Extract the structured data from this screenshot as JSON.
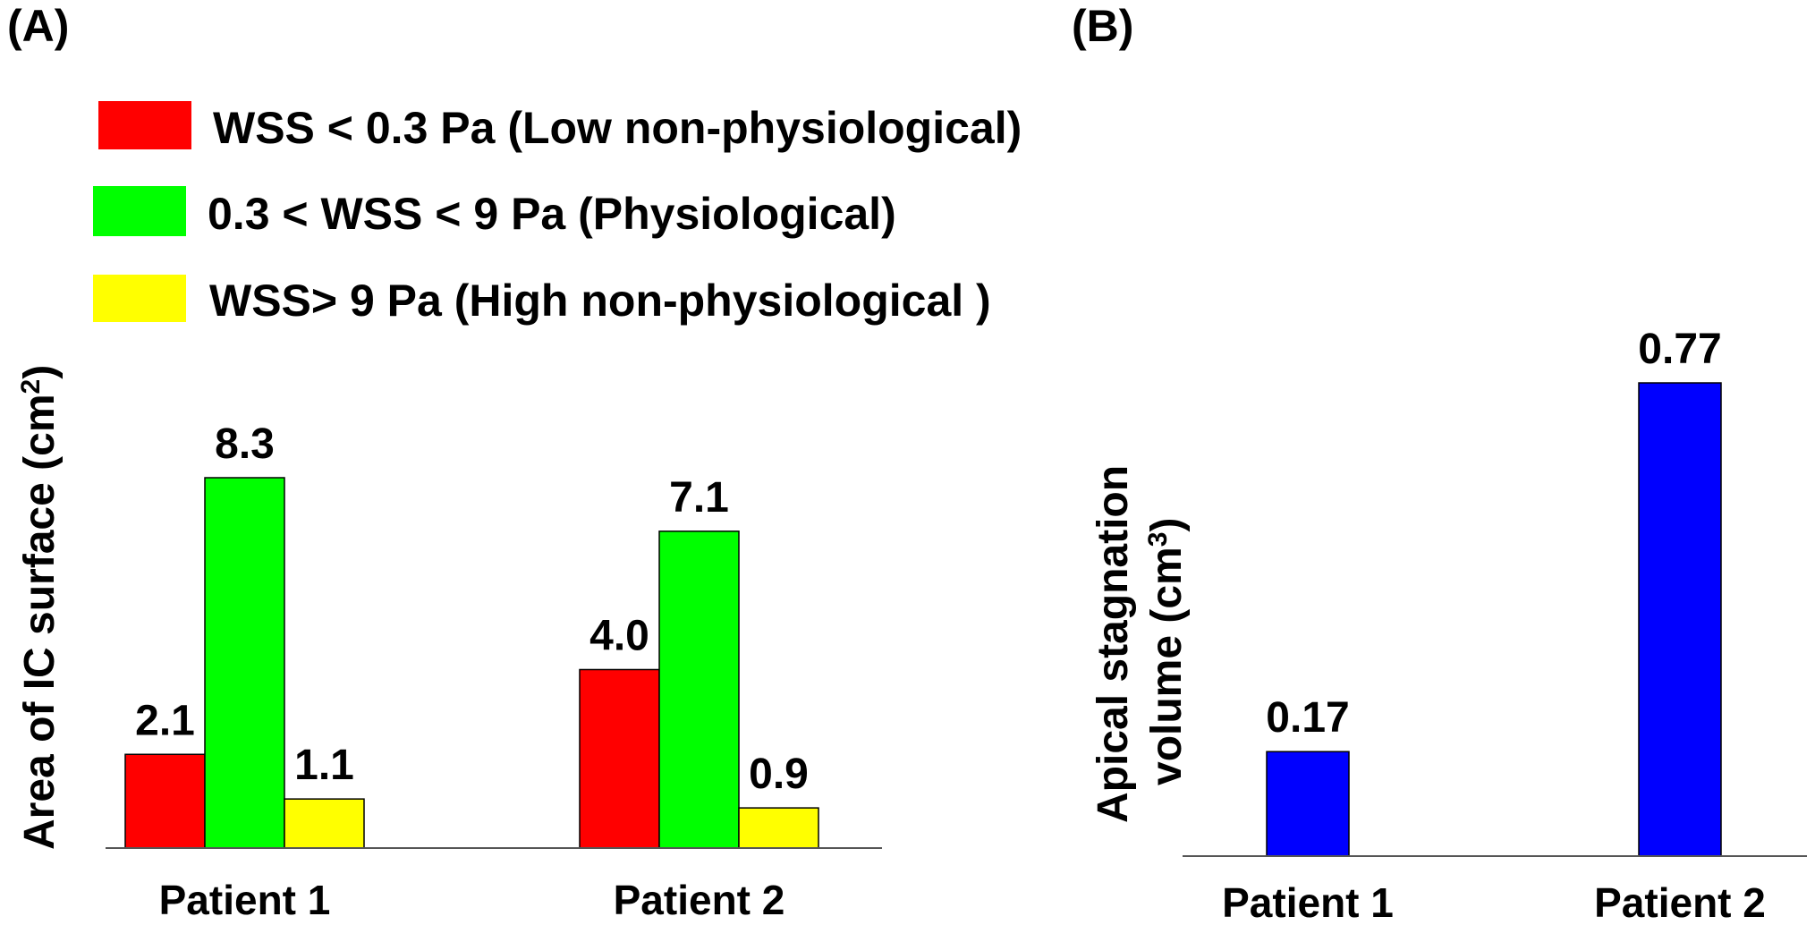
{
  "chart_data": [
    {
      "panel": "(A)",
      "type": "bar",
      "categories": [
        "Patient 1",
        "Patient 2"
      ],
      "series": [
        {
          "name": "WSS < 0.3 Pa (Low non-physiological)",
          "color": "#ff0000",
          "values": [
            2.1,
            4.0
          ],
          "labels": [
            "2.1",
            "4.0"
          ]
        },
        {
          "name": "0.3 < WSS < 9 Pa (Physiological)",
          "color": "#00ff00",
          "values": [
            8.3,
            7.1
          ],
          "labels": [
            "8.3",
            "7.1"
          ]
        },
        {
          "name": "WSS> 9 Pa (High non-physiological )",
          "color": "#ffff00",
          "values": [
            1.1,
            0.9
          ],
          "labels": [
            "1.1",
            "0.9"
          ]
        }
      ],
      "ylabel": "Area of IC surface (cm",
      "ylabel_sup": "2",
      "ylabel_end": ")",
      "ylim": [
        0,
        8.3
      ],
      "grid": false,
      "legend": "top-left"
    },
    {
      "panel": "(B)",
      "type": "bar",
      "categories": [
        "Patient 1",
        "Patient 2"
      ],
      "series": [
        {
          "color": "#0000ff",
          "values": [
            0.17,
            0.77
          ],
          "labels": [
            "0.17",
            "0.77"
          ]
        }
      ],
      "ylabel_line1": "Apical stagnation",
      "ylabel_line2": "volume (cm",
      "ylabel_sup": "3",
      "ylabel_end": ")",
      "ylim": [
        0,
        0.77
      ],
      "grid": false
    }
  ]
}
